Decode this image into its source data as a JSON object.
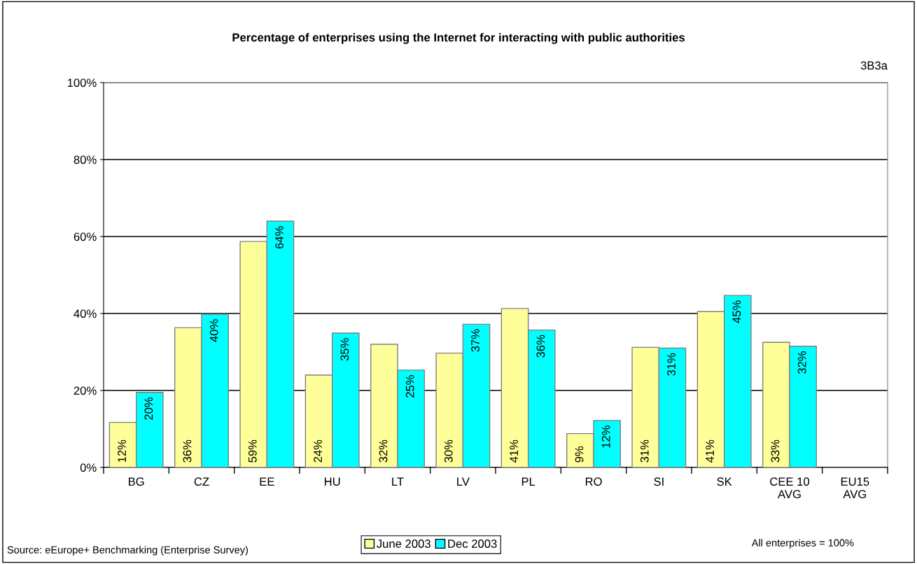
{
  "chart_data": {
    "type": "bar",
    "title": "Percentage of enterprises using the Internet for interacting with public authorities",
    "categories": [
      "BG",
      "CZ",
      "EE",
      "HU",
      "LT",
      "LV",
      "PL",
      "RO",
      "SI",
      "SK",
      "CEE 10\nAVG",
      "EU15\nAVG"
    ],
    "series": [
      {
        "name": "June 2003",
        "color": "#ffff99",
        "values": [
          11.7,
          36.3,
          58.7,
          24.0,
          32.0,
          29.7,
          41.3,
          8.8,
          31.2,
          40.5,
          32.5,
          null
        ],
        "value_labels": [
          "12%",
          "36%",
          "59%",
          "24%",
          "32%",
          "30%",
          "41%",
          "9%",
          "31%",
          "41%",
          "33%",
          null
        ]
      },
      {
        "name": "Dec 2003",
        "color": "#00ffff",
        "values": [
          19.5,
          39.8,
          64.0,
          34.9,
          25.3,
          37.2,
          35.7,
          12.2,
          31.0,
          44.7,
          31.5,
          null
        ],
        "value_labels": [
          "20%",
          "40%",
          "64%",
          "35%",
          "25%",
          "37%",
          "36%",
          "12%",
          "31%",
          "45%",
          "32%",
          null
        ]
      }
    ],
    "ylim": [
      0,
      100
    ],
    "yticks": [
      {
        "value": 0,
        "label": "0%"
      },
      {
        "value": 20,
        "label": "20%"
      },
      {
        "value": 40,
        "label": "40%"
      },
      {
        "value": 60,
        "label": "60%"
      },
      {
        "value": 80,
        "label": "80%"
      },
      {
        "value": 100,
        "label": "100%"
      }
    ],
    "grid": "y",
    "legend": "bottom",
    "annotations": [
      "3B3a",
      "Source: eEurope+ Benchmarking (Enterprise Survey)",
      "All enterprises = 100%"
    ]
  }
}
